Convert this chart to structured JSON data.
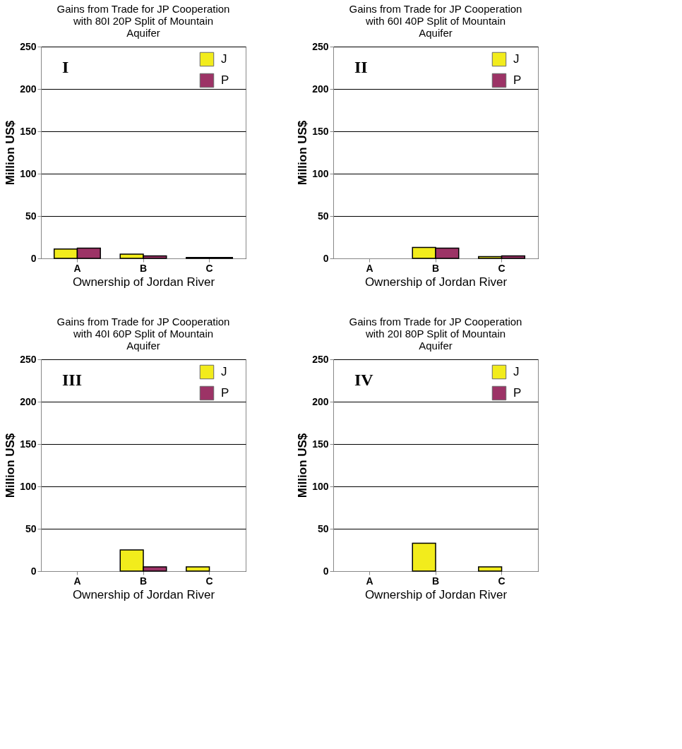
{
  "chart_data": [
    {
      "type": "bar",
      "title": "Gains from Trade for JP Cooperation with 80I 20P Split of Mountain Aquifer",
      "xlabel": "Ownership of Jordan River",
      "ylabel": "Million US$",
      "categories": [
        "A",
        "B",
        "C"
      ],
      "series": [
        {
          "name": "J",
          "color": "#f2ec1c",
          "values": [
            11,
            5,
            1
          ]
        },
        {
          "name": "P",
          "color": "#9c3366",
          "values": [
            12,
            3,
            1
          ]
        }
      ],
      "ylim": [
        0,
        250
      ],
      "yticks": [
        0,
        50,
        100,
        150,
        200,
        250
      ],
      "grid": "y",
      "legend": "top right",
      "annotations": [
        "I"
      ]
    },
    {
      "type": "bar",
      "title": "Gains from Trade for JP Cooperation with 60I 40P Split of Mountain Aquifer",
      "xlabel": "Ownership of Jordan River",
      "ylabel": "Million US$",
      "categories": [
        "A",
        "B",
        "C"
      ],
      "series": [
        {
          "name": "J",
          "color": "#f2ec1c",
          "values": [
            null,
            13,
            2
          ]
        },
        {
          "name": "P",
          "color": "#9c3366",
          "values": [
            null,
            12,
            3
          ]
        }
      ],
      "ylim": [
        0,
        250
      ],
      "yticks": [
        0,
        50,
        100,
        150,
        200,
        250
      ],
      "grid": "y",
      "legend": "top right",
      "annotations": [
        "II"
      ]
    },
    {
      "type": "bar",
      "title": "Gains from Trade for JP Cooperation with 40I 60P Split of Mountain Aquifer",
      "xlabel": "Ownership of Jordan River",
      "ylabel": "Million US$",
      "categories": [
        "A",
        "B",
        "C"
      ],
      "series": [
        {
          "name": "J",
          "color": "#f2ec1c",
          "values": [
            null,
            25,
            5
          ]
        },
        {
          "name": "P",
          "color": "#9c3366",
          "values": [
            null,
            5,
            null
          ]
        }
      ],
      "ylim": [
        0,
        250
      ],
      "yticks": [
        0,
        50,
        100,
        150,
        200,
        250
      ],
      "grid": "y",
      "legend": "top right",
      "annotations": [
        "III"
      ]
    },
    {
      "type": "bar",
      "title": "Gains from Trade for JP Cooperation with 20I 80P Split of Mountain Aquifer",
      "xlabel": "Ownership of Jordan River",
      "ylabel": "Million US$",
      "categories": [
        "A",
        "B",
        "C"
      ],
      "series": [
        {
          "name": "J",
          "color": "#f2ec1c",
          "values": [
            null,
            33,
            5
          ]
        },
        {
          "name": "P",
          "color": "#9c3366",
          "values": [
            null,
            null,
            null
          ]
        }
      ],
      "ylim": [
        0,
        250
      ],
      "yticks": [
        0,
        50,
        100,
        150,
        200,
        250
      ],
      "grid": "y",
      "legend": "top right",
      "annotations": [
        "IV"
      ]
    }
  ]
}
